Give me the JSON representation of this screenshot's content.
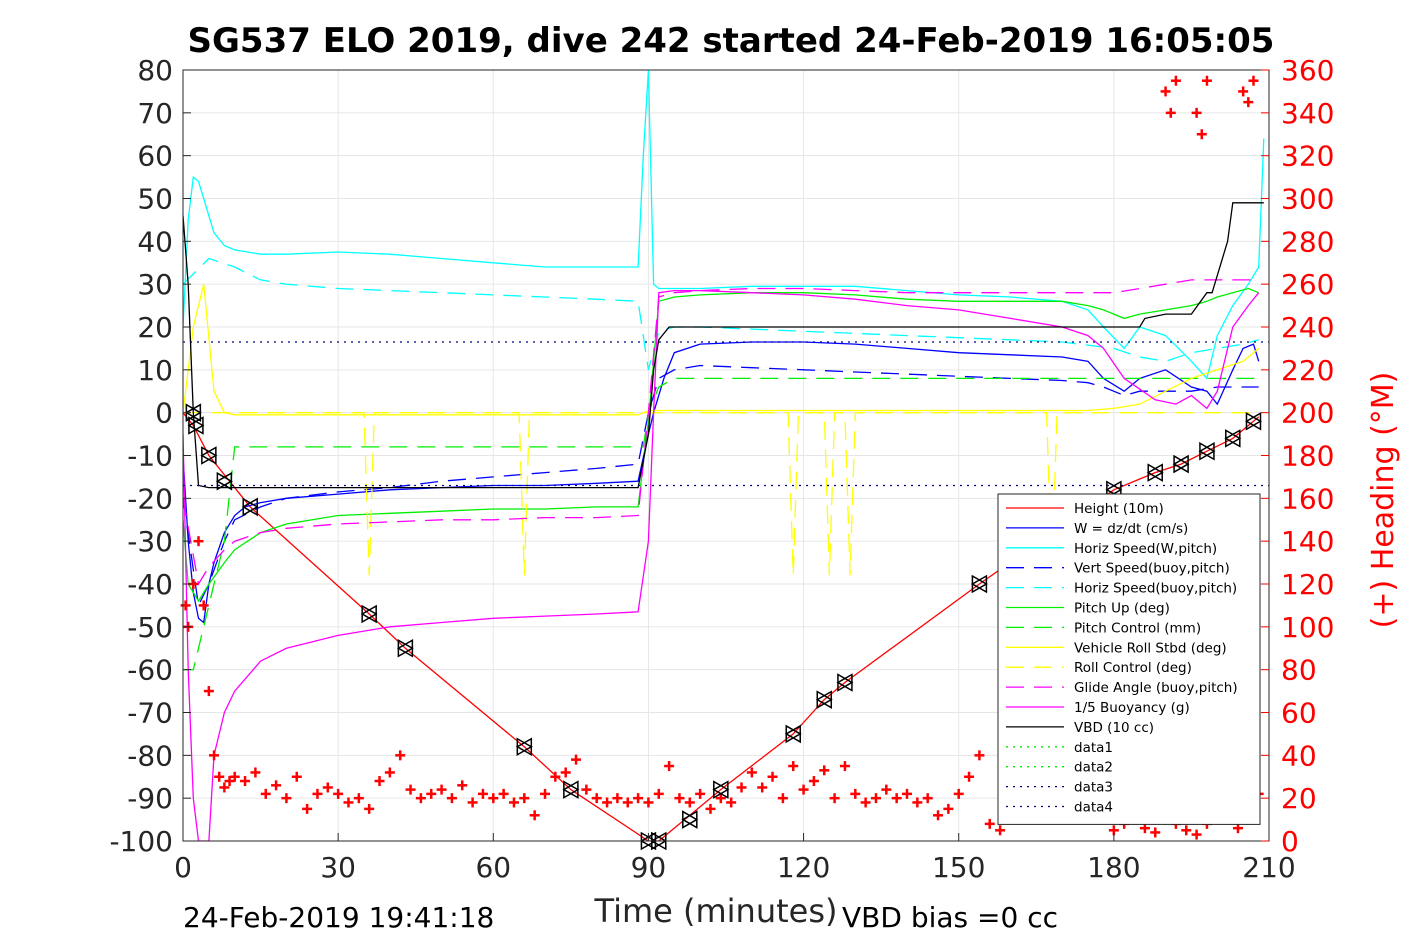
{
  "chart_data": {
    "type": "line",
    "title": "SG537 ELO 2019, dive 242 started 24-Feb-2019 16:05:05",
    "xlabel": "Time (minutes)",
    "ylabel": "",
    "y2label": "(+) Heading (°M)",
    "xlim": [
      0,
      210
    ],
    "ylim": [
      -100,
      80
    ],
    "y2lim": [
      0,
      360
    ],
    "xticks": [
      "0",
      "30",
      "60",
      "90",
      "120",
      "150",
      "180",
      "210"
    ],
    "yticks": [
      "80",
      "70",
      "60",
      "50",
      "40",
      "30",
      "20",
      "10",
      "0",
      "-10",
      "-20",
      "-30",
      "-40",
      "-50",
      "-60",
      "-70",
      "-80",
      "-90",
      "-100"
    ],
    "y2ticks": [
      "360",
      "340",
      "320",
      "300",
      "280",
      "260",
      "240",
      "220",
      "200",
      "180",
      "160",
      "140",
      "120",
      "100",
      "80",
      "60",
      "40",
      "20",
      "0"
    ],
    "grid": true,
    "legend_position": "bottom-right",
    "footer_left": "24-Feb-2019 19:41:18",
    "footer_right": "VBD bias =0 cc",
    "reference_lines": [
      {
        "name": "data3",
        "y": 16.5
      },
      {
        "name": "data4",
        "y": -17
      }
    ],
    "series": [
      {
        "name": "Height (10m)",
        "color": "#ff0000",
        "style": "solid",
        "x": [
          0,
          2,
          5,
          9,
          13,
          36,
          43,
          66,
          75,
          90,
          92,
          97,
          104,
          118,
          124,
          128,
          154,
          180,
          188,
          193,
          198,
          203,
          208
        ],
        "y": [
          0,
          -3,
          -10,
          -16,
          -22,
          -47,
          -55,
          -78,
          -88,
          -100,
          -100,
          -95,
          -88,
          -75,
          -67,
          -63,
          -40,
          -18,
          -14,
          -12,
          -9,
          -6,
          -1
        ]
      },
      {
        "name": "W = dz/dt (cm/s)",
        "color": "#0000ff",
        "style": "solid",
        "x": [
          0,
          1,
          2,
          3,
          4,
          5,
          6,
          8,
          10,
          12,
          15,
          20,
          30,
          40,
          50,
          60,
          70,
          80,
          88,
          90,
          91,
          93,
          95,
          100,
          110,
          120,
          130,
          140,
          150,
          160,
          170,
          175,
          178,
          182,
          185,
          190,
          195,
          198,
          200,
          203,
          205,
          207,
          208
        ],
        "y": [
          -10,
          -30,
          -42,
          -48,
          -49,
          -40,
          -35,
          -28,
          -24,
          -22,
          -21,
          -20,
          -19,
          -18,
          -17.5,
          -17,
          -17,
          -16.5,
          -16,
          -5,
          0,
          8,
          14,
          16,
          16.5,
          16.5,
          16,
          15,
          14,
          13.5,
          13,
          12,
          8,
          5,
          8,
          10,
          6,
          5,
          2,
          10,
          15,
          16,
          12
        ]
      },
      {
        "name": "Horiz Speed(W,pitch)",
        "color": "#00ffff",
        "style": "solid",
        "x": [
          0,
          1,
          2,
          3,
          4,
          6,
          8,
          10,
          15,
          20,
          30,
          40,
          50,
          60,
          70,
          80,
          88,
          89,
          90,
          91,
          92,
          95,
          100,
          110,
          120,
          130,
          140,
          150,
          160,
          170,
          175,
          178,
          182,
          185,
          190,
          195,
          198,
          200,
          203,
          206,
          208,
          209
        ],
        "y": [
          20,
          45,
          55,
          54,
          50,
          42,
          39,
          38,
          37,
          37,
          37.5,
          37,
          36,
          35,
          34,
          34,
          34,
          60,
          80,
          30,
          29,
          29,
          29,
          29.5,
          29.5,
          29.5,
          28.5,
          27.5,
          27,
          26,
          24,
          20,
          15,
          20,
          18,
          12,
          8,
          18,
          25,
          30,
          34,
          64
        ]
      },
      {
        "name": "Vert Speed(buoy,pitch)",
        "color": "#0000ff",
        "style": "dashed",
        "x": [
          0,
          3,
          5,
          8,
          10,
          15,
          20,
          30,
          40,
          50,
          60,
          70,
          80,
          88,
          90,
          92,
          95,
          100,
          110,
          120,
          130,
          140,
          150,
          160,
          170,
          175,
          178,
          182,
          185,
          190,
          195,
          200,
          205,
          208
        ],
        "y": [
          -20,
          -45,
          -40,
          -30,
          -25,
          -22,
          -20,
          -18.5,
          -17.5,
          -16,
          -15,
          -14,
          -13,
          -12,
          0,
          8,
          10,
          11,
          10.5,
          10,
          9.5,
          9,
          8.5,
          8,
          7.5,
          7,
          6,
          4,
          5,
          5,
          5,
          6,
          6,
          6
        ]
      },
      {
        "name": "Horiz Speed(buoy,pitch)",
        "color": "#00ffff",
        "style": "dashed",
        "x": [
          0,
          5,
          10,
          15,
          20,
          30,
          40,
          50,
          60,
          70,
          80,
          88,
          90,
          92,
          95,
          100,
          110,
          120,
          130,
          140,
          150,
          160,
          170,
          180,
          185,
          190,
          195,
          200,
          205,
          208
        ],
        "y": [
          30,
          36,
          34,
          31,
          30,
          29,
          28.5,
          28,
          27.5,
          27,
          26.5,
          26,
          10,
          19,
          20,
          20,
          19.5,
          19,
          18.5,
          18,
          17.5,
          17,
          16.5,
          15,
          13,
          12,
          14,
          15,
          16,
          17
        ]
      },
      {
        "name": "Pitch Up (deg)",
        "color": "#00ee00",
        "style": "solid",
        "x": [
          0,
          1,
          3,
          5,
          8,
          10,
          15,
          20,
          30,
          40,
          50,
          60,
          70,
          80,
          88,
          90,
          92,
          95,
          100,
          110,
          120,
          130,
          140,
          150,
          160,
          170,
          175,
          178,
          182,
          185,
          190,
          195,
          198,
          200,
          203,
          206,
          208
        ],
        "y": [
          -25,
          -40,
          -44,
          -40,
          -35,
          -32,
          -28,
          -26,
          -24,
          -23.5,
          -23,
          -22.5,
          -22.5,
          -22,
          -22,
          -2,
          26,
          27,
          27.5,
          28,
          28,
          27.5,
          26.5,
          26,
          26,
          26,
          25,
          24,
          22,
          23,
          24,
          25,
          26,
          27,
          28,
          29,
          28
        ]
      },
      {
        "name": "Pitch Control (mm)",
        "color": "#00ee00",
        "style": "dashed",
        "x": [
          0,
          2,
          4,
          6,
          8,
          10,
          20,
          40,
          60,
          80,
          89,
          90,
          92,
          95,
          100,
          120,
          140,
          160,
          180,
          200,
          205,
          208
        ],
        "y": [
          -60,
          -60,
          -50,
          -40,
          -30,
          -8,
          -8,
          -8,
          -8,
          -8,
          -8,
          0,
          6,
          8,
          8,
          8,
          8,
          8,
          8,
          8,
          8,
          8
        ]
      },
      {
        "name": "Vehicle Roll Stbd (deg)",
        "color": "#ffff00",
        "style": "solid",
        "x": [
          0,
          1,
          2,
          4,
          6,
          8,
          10,
          20,
          30,
          40,
          50,
          60,
          70,
          80,
          88,
          90,
          100,
          110,
          120,
          130,
          140,
          150,
          160,
          170,
          175,
          180,
          185,
          190,
          195,
          200,
          205,
          208
        ],
        "y": [
          0,
          10,
          20,
          30,
          5,
          0,
          -0.5,
          -0.5,
          -0.5,
          -0.5,
          -0.5,
          -0.5,
          -0.5,
          -0.5,
          -0.5,
          0.5,
          0.5,
          0.5,
          0.5,
          0.5,
          0.5,
          0.5,
          0.5,
          0.5,
          0.5,
          1,
          2,
          5,
          8,
          10,
          12,
          15
        ]
      },
      {
        "name": "Roll Control (deg)",
        "color": "#ffff00",
        "style": "dashed",
        "x": [
          0,
          5,
          10,
          20,
          30,
          35,
          36,
          37,
          50,
          65,
          66,
          67,
          80,
          90,
          100,
          110,
          117,
          118,
          119,
          124,
          125,
          126,
          128,
          129,
          130,
          150,
          167,
          168,
          169,
          180,
          190,
          200,
          208
        ],
        "y": [
          0,
          0,
          0,
          0,
          0,
          0,
          -38,
          0,
          0,
          0,
          -38,
          0,
          0,
          0,
          0,
          0,
          0,
          -38,
          0,
          0,
          -38,
          0,
          0,
          -38,
          0,
          0,
          0,
          -38,
          0,
          0,
          0,
          0,
          0
        ]
      },
      {
        "name": "Glide Angle (buoy,pitch)",
        "color": "#ff00ff",
        "style": "dashed",
        "x": [
          0,
          3,
          5,
          8,
          10,
          15,
          20,
          30,
          40,
          50,
          60,
          70,
          80,
          88,
          90,
          92,
          95,
          100,
          110,
          120,
          130,
          140,
          150,
          160,
          170,
          180,
          185,
          190,
          195,
          200,
          205,
          208
        ],
        "y": [
          -20,
          -40,
          -36,
          -32,
          -30,
          -28,
          -27,
          -26,
          -25.5,
          -25,
          -25,
          -24.5,
          -24.5,
          -24,
          0,
          27,
          28,
          28.5,
          29,
          29,
          28.5,
          28,
          28,
          28,
          28,
          28,
          29,
          30,
          31,
          31,
          31,
          31
        ]
      },
      {
        "name": "1/5 Buoyancy (g)",
        "color": "#ff00ff",
        "style": "solid",
        "x": [
          0,
          1,
          2,
          3,
          4,
          5,
          6,
          8,
          10,
          15,
          20,
          30,
          40,
          50,
          60,
          70,
          80,
          88,
          90,
          91,
          92,
          95,
          100,
          110,
          120,
          130,
          140,
          150,
          160,
          170,
          175,
          178,
          182,
          188,
          192,
          195,
          198,
          200,
          203,
          206,
          208
        ],
        "y": [
          -5,
          -60,
          -90,
          -100,
          -100,
          -100,
          -80,
          -70,
          -65,
          -58,
          -55,
          -52,
          -50,
          -49,
          -48,
          -47.5,
          -47,
          -46.5,
          -30,
          0,
          28,
          28.5,
          28.5,
          28,
          27.5,
          26.5,
          25,
          24,
          22,
          20,
          18,
          15,
          8,
          3,
          2,
          4,
          1,
          5,
          20,
          25,
          28
        ]
      },
      {
        "name": "VBD (10 cc)",
        "color": "#000000",
        "style": "solid",
        "x": [
          0,
          1,
          2,
          3,
          5,
          10,
          20,
          40,
          60,
          80,
          88,
          90,
          91,
          92,
          94,
          100,
          120,
          140,
          160,
          180,
          185,
          186,
          190,
          195,
          198,
          199,
          202,
          203,
          206,
          209
        ],
        "y": [
          46,
          30,
          0,
          -17,
          -17.5,
          -17.5,
          -17.5,
          -17.5,
          -17.5,
          -17.5,
          -17.5,
          -5,
          10,
          17,
          20,
          20,
          20,
          20,
          20,
          20,
          20,
          22,
          23,
          23,
          28,
          28,
          40,
          49,
          49,
          49
        ]
      },
      {
        "name": "data1",
        "color": "#00ee00",
        "style": "dotted",
        "x": [],
        "y": []
      },
      {
        "name": "data2",
        "color": "#00ee00",
        "style": "dotted",
        "x": [],
        "y": []
      },
      {
        "name": "data3",
        "color": "#000080",
        "style": "dotted",
        "x": [
          0,
          210
        ],
        "y": [
          16.5,
          16.5
        ]
      },
      {
        "name": "data4",
        "color": "#000080",
        "style": "dotted",
        "x": [
          0,
          210
        ],
        "y": [
          -17,
          -17
        ]
      }
    ],
    "heading_series": {
      "name": "(+) Heading",
      "color": "#ff0000",
      "marker": "+",
      "x": [
        0.5,
        1,
        2,
        3,
        4,
        5,
        6,
        7,
        8,
        9,
        10,
        12,
        14,
        16,
        18,
        20,
        22,
        24,
        26,
        28,
        30,
        32,
        34,
        36,
        38,
        40,
        42,
        44,
        46,
        48,
        50,
        52,
        54,
        56,
        58,
        60,
        62,
        64,
        66,
        68,
        70,
        72,
        74,
        76,
        78,
        80,
        82,
        84,
        86,
        88,
        90,
        92,
        94,
        96,
        98,
        100,
        102,
        104,
        106,
        108,
        110,
        112,
        114,
        116,
        118,
        120,
        122,
        124,
        126,
        128,
        130,
        132,
        134,
        136,
        138,
        140,
        142,
        144,
        146,
        148,
        150,
        152,
        154,
        156,
        158,
        160,
        180,
        182,
        184,
        186,
        188,
        190,
        192,
        194,
        196,
        198,
        200,
        202,
        204,
        206,
        208,
        190,
        191,
        192,
        196,
        197,
        198,
        205,
        206,
        207
      ],
      "y": [
        110,
        100,
        120,
        140,
        110,
        70,
        40,
        30,
        25,
        28,
        30,
        28,
        32,
        22,
        26,
        20,
        30,
        15,
        22,
        25,
        22,
        18,
        20,
        15,
        28,
        32,
        40,
        24,
        20,
        22,
        24,
        20,
        26,
        18,
        22,
        20,
        22,
        18,
        20,
        12,
        22,
        30,
        32,
        38,
        24,
        20,
        18,
        20,
        18,
        20,
        18,
        22,
        35,
        20,
        18,
        22,
        15,
        20,
        18,
        25,
        32,
        25,
        30,
        20,
        35,
        24,
        28,
        33,
        20,
        35,
        22,
        18,
        20,
        24,
        20,
        22,
        18,
        20,
        12,
        15,
        22,
        30,
        40,
        8,
        5,
        18,
        5,
        8,
        10,
        6,
        4,
        10,
        8,
        5,
        3,
        8,
        12,
        15,
        6,
        10,
        22,
        350,
        340,
        355,
        340,
        330,
        355,
        350,
        345,
        355
      ]
    },
    "markers": {
      "triangle_right_x": [
        2,
        2.5,
        5,
        8,
        13,
        36,
        43,
        66,
        75,
        90,
        92,
        98,
        104,
        118,
        124,
        128,
        154,
        180,
        188,
        193,
        198,
        203,
        207
      ],
      "triangle_right_y": [
        0,
        -3,
        -10,
        -16,
        -22,
        -47,
        -55,
        -78,
        -88,
        -100,
        -100,
        -95,
        -88,
        -75,
        -67,
        -63,
        -40,
        -18,
        -14,
        -12,
        -9,
        -6,
        -2
      ]
    }
  }
}
